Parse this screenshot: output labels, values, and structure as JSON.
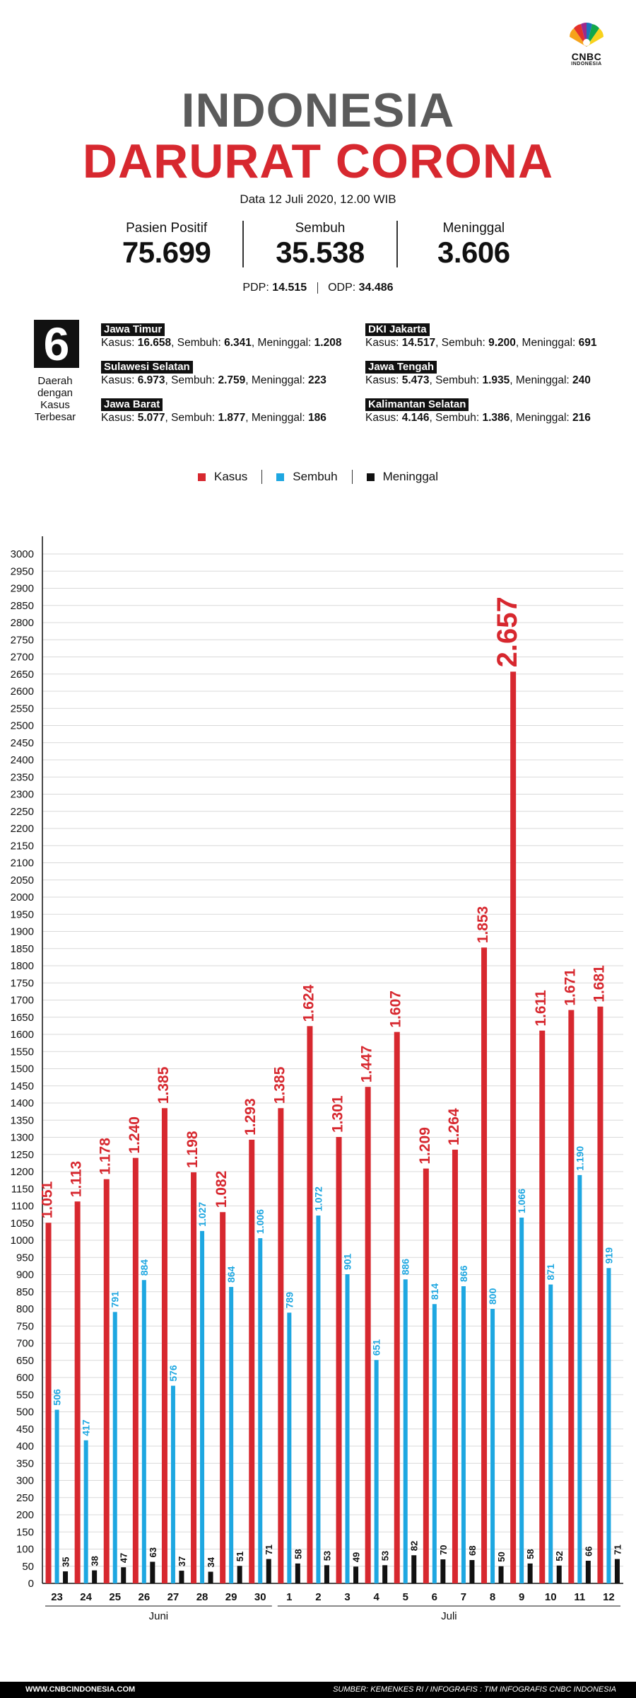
{
  "brand": {
    "name": "CNBC",
    "sub": "INDONESIA"
  },
  "title": {
    "line1": "INDONESIA",
    "line2": "DARURAT CORONA"
  },
  "date": "Data 12 Juli 2020, 12.00 WIB",
  "stats": [
    {
      "label": "Pasien Positif",
      "value": "75.699"
    },
    {
      "label": "Sembuh",
      "value": "35.538"
    },
    {
      "label": "Meninggal",
      "value": "3.606"
    }
  ],
  "pdp": {
    "pdp_label": "PDP:",
    "pdp_value": "14.515",
    "odp_label": "ODP:",
    "odp_value": "34.486"
  },
  "regions_box": {
    "number": "6",
    "label_lines": [
      "Daerah",
      "dengan",
      "Kasus",
      "Terbesar"
    ]
  },
  "regions": [
    {
      "name": "Jawa Timur",
      "kasus": "16.658",
      "sembuh": "6.341",
      "meninggal": "1.208"
    },
    {
      "name": "Sulawesi Selatan",
      "kasus": "6.973",
      "sembuh": "2.759",
      "meninggal": "223"
    },
    {
      "name": "Jawa Barat",
      "kasus": "5.077",
      "sembuh": "1.877",
      "meninggal": "186"
    },
    {
      "name": "DKI Jakarta",
      "kasus": "14.517",
      "sembuh": "9.200",
      "meninggal": "691"
    },
    {
      "name": "Jawa Tengah",
      "kasus": "5.473",
      "sembuh": "1.935",
      "meninggal": "240"
    },
    {
      "name": "Kalimantan Selatan",
      "kasus": "4.146",
      "sembuh": "1.386",
      "meninggal": "216"
    }
  ],
  "region_labels": {
    "kasus": "Kasus:",
    "sembuh": "Sembuh:",
    "meninggal": "Meninggal:"
  },
  "colors": {
    "kasus": "#d7282f",
    "sembuh": "#1ea7e1",
    "meninggal": "#111111",
    "title_gray": "#5b5b5b"
  },
  "chart_data": {
    "type": "bar",
    "categories": [
      "23",
      "24",
      "25",
      "26",
      "27",
      "28",
      "29",
      "30",
      "1",
      "2",
      "3",
      "4",
      "5",
      "6",
      "7",
      "8",
      "9",
      "10",
      "11",
      "12"
    ],
    "months": [
      {
        "label": "Juni",
        "from": 0,
        "to": 7
      },
      {
        "label": "Juli",
        "from": 8,
        "to": 19
      }
    ],
    "series": [
      {
        "name": "Kasus",
        "color": "#d7282f",
        "values": [
          1051,
          1113,
          1178,
          1240,
          1385,
          1198,
          1082,
          1293,
          1385,
          1624,
          1301,
          1447,
          1607,
          1209,
          1264,
          1853,
          2657,
          1611,
          1671,
          1681
        ],
        "labels": [
          "1.051",
          "1.113",
          "1.178",
          "1.240",
          "1.385",
          "1.198",
          "1.082",
          "1.293",
          "1.385",
          "1.624",
          "1.301",
          "1.447",
          "1.607",
          "1.209",
          "1.264",
          "1.853",
          "2.657",
          "1.611",
          "1.671",
          "1.681"
        ]
      },
      {
        "name": "Sembuh",
        "color": "#1ea7e1",
        "values": [
          506,
          417,
          791,
          884,
          576,
          1027,
          864,
          1006,
          789,
          1072,
          901,
          651,
          886,
          814,
          866,
          800,
          1066,
          871,
          1190,
          919
        ],
        "labels": [
          "506",
          "417",
          "791",
          "884",
          "576",
          "1.027",
          "864",
          "1.006",
          "789",
          "1.072",
          "901",
          "651",
          "886",
          "814",
          "866",
          "800",
          "1.066",
          "871",
          "1.190",
          "919"
        ]
      },
      {
        "name": "Meninggal",
        "color": "#111111",
        "values": [
          35,
          38,
          47,
          63,
          37,
          34,
          51,
          71,
          58,
          53,
          49,
          53,
          82,
          70,
          68,
          50,
          58,
          52,
          66,
          71
        ],
        "labels": [
          "35",
          "38",
          "47",
          "63",
          "37",
          "34",
          "51",
          "71",
          "58",
          "53",
          "49",
          "53",
          "82",
          "70",
          "68",
          "50",
          "58",
          "52",
          "66",
          "71"
        ]
      }
    ],
    "ylim": [
      0,
      3000
    ],
    "ytick_step": 50,
    "grid": true,
    "legend": "top-center"
  },
  "footer": {
    "left": "WWW.CNBCINDONESIA.COM",
    "right": "SUMBER: KEMENKES RI / INFOGRAFIS : TIM INFOGRAFIS CNBC INDONESIA"
  }
}
